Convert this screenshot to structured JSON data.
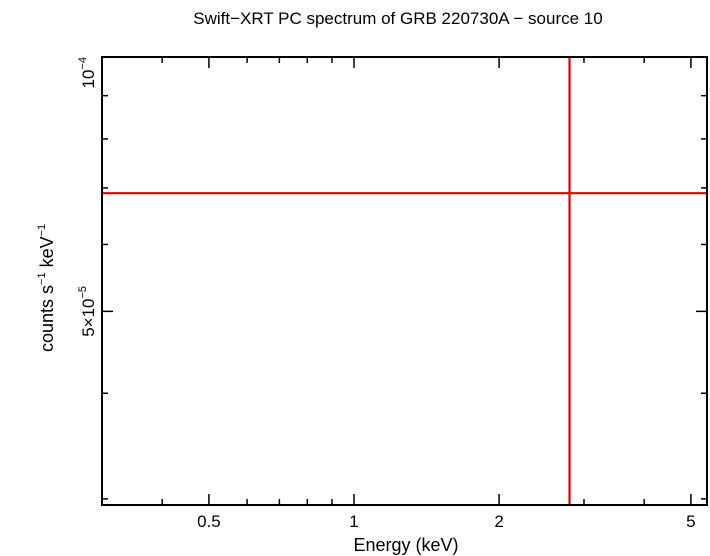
{
  "chart_data": {
    "type": "scatter",
    "title": "Swift−XRT PC spectrum of GRB 220730A − source 10",
    "xlabel": "Energy (keV)",
    "ylabel": {
      "text": "counts s",
      "exp1": "−1",
      "mid": " keV",
      "exp2": "−1"
    },
    "x_scale": "log",
    "y_scale": "log",
    "xlim": [
      0.3,
      5.4
    ],
    "ylim": [
      2.95e-05,
      0.0001
    ],
    "x_tick_labels": [
      {
        "value": 0.5,
        "label": "0.5"
      },
      {
        "value": 1,
        "label": "1"
      },
      {
        "value": 2,
        "label": "2"
      },
      {
        "value": 5,
        "label": "5"
      }
    ],
    "y_tick_labels": [
      {
        "value": 0.0001,
        "mantissa": "10",
        "exponent": "−4"
      },
      {
        "value": 5e-05,
        "mantissa": "5×10",
        "exponent": "−5"
      }
    ],
    "series": [
      {
        "name": "source 10",
        "color": "#e00000",
        "points": [
          {
            "x": 2.8,
            "y": 6.9e-05,
            "xerr": [
              0.3,
              5.4
            ],
            "yerr": [
              2.95e-05,
              0.0001
            ]
          }
        ]
      }
    ]
  }
}
